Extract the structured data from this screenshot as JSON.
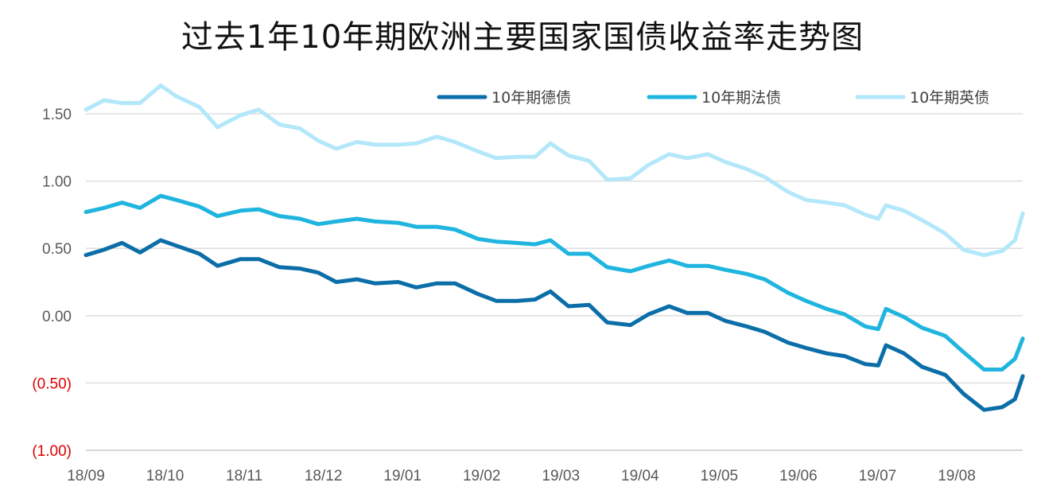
{
  "chart_data": {
    "type": "line",
    "title": "过去1年10年期欧洲主要国家国债收益率走势图",
    "x_range": [
      "2018-09-01",
      "2019-08-30"
    ],
    "x_tick_labels": [
      "18/09",
      "18/10",
      "18/11",
      "18/12",
      "19/01",
      "19/02",
      "19/03",
      "19/04",
      "19/05",
      "19/06",
      "19/07",
      "19/08"
    ],
    "y_ticks": [
      1.5,
      1.0,
      0.5,
      0.0,
      -0.5,
      -1.0
    ],
    "y_tick_labels": [
      "1.50",
      "1.00",
      "0.50",
      "0.00",
      "(0.50)",
      "(1.00)"
    ],
    "ylim": [
      -1.0,
      1.75
    ],
    "grid": "horizontal",
    "legend_position": "top-right",
    "negative_label_color": "#e00000",
    "series": [
      {
        "name": "10年期德债",
        "color": "#0b6ea8",
        "points": [
          [
            "2018-09-01",
            0.45
          ],
          [
            "2018-09-08",
            0.49
          ],
          [
            "2018-09-15",
            0.54
          ],
          [
            "2018-09-22",
            0.47
          ],
          [
            "2018-09-30",
            0.56
          ],
          [
            "2018-10-06",
            0.52
          ],
          [
            "2018-10-15",
            0.46
          ],
          [
            "2018-10-22",
            0.37
          ],
          [
            "2018-10-31",
            0.42
          ],
          [
            "2018-11-07",
            0.42
          ],
          [
            "2018-11-15",
            0.36
          ],
          [
            "2018-11-23",
            0.35
          ],
          [
            "2018-11-30",
            0.32
          ],
          [
            "2018-12-07",
            0.25
          ],
          [
            "2018-12-15",
            0.27
          ],
          [
            "2018-12-22",
            0.24
          ],
          [
            "2018-12-31",
            0.25
          ],
          [
            "2019-01-07",
            0.21
          ],
          [
            "2019-01-15",
            0.24
          ],
          [
            "2019-01-22",
            0.24
          ],
          [
            "2019-01-31",
            0.16
          ],
          [
            "2019-02-07",
            0.11
          ],
          [
            "2019-02-15",
            0.11
          ],
          [
            "2019-02-22",
            0.12
          ],
          [
            "2019-02-28",
            0.18
          ],
          [
            "2019-03-07",
            0.07
          ],
          [
            "2019-03-15",
            0.08
          ],
          [
            "2019-03-22",
            -0.05
          ],
          [
            "2019-03-31",
            -0.07
          ],
          [
            "2019-04-07",
            0.01
          ],
          [
            "2019-04-15",
            0.07
          ],
          [
            "2019-04-22",
            0.02
          ],
          [
            "2019-04-30",
            0.02
          ],
          [
            "2019-05-07",
            -0.04
          ],
          [
            "2019-05-15",
            -0.08
          ],
          [
            "2019-05-22",
            -0.12
          ],
          [
            "2019-05-31",
            -0.2
          ],
          [
            "2019-06-07",
            -0.24
          ],
          [
            "2019-06-15",
            -0.28
          ],
          [
            "2019-06-22",
            -0.3
          ],
          [
            "2019-06-30",
            -0.36
          ],
          [
            "2019-07-05",
            -0.37
          ],
          [
            "2019-07-08",
            -0.22
          ],
          [
            "2019-07-15",
            -0.28
          ],
          [
            "2019-07-22",
            -0.38
          ],
          [
            "2019-07-31",
            -0.44
          ],
          [
            "2019-08-07",
            -0.58
          ],
          [
            "2019-08-15",
            -0.7
          ],
          [
            "2019-08-22",
            -0.68
          ],
          [
            "2019-08-27",
            -0.62
          ],
          [
            "2019-08-30",
            -0.45
          ]
        ]
      },
      {
        "name": "10年期法债",
        "color": "#1fb5df",
        "points": [
          [
            "2018-09-01",
            0.77
          ],
          [
            "2018-09-08",
            0.8
          ],
          [
            "2018-09-15",
            0.84
          ],
          [
            "2018-09-22",
            0.8
          ],
          [
            "2018-09-30",
            0.89
          ],
          [
            "2018-10-06",
            0.86
          ],
          [
            "2018-10-15",
            0.81
          ],
          [
            "2018-10-22",
            0.74
          ],
          [
            "2018-10-31",
            0.78
          ],
          [
            "2018-11-07",
            0.79
          ],
          [
            "2018-11-15",
            0.74
          ],
          [
            "2018-11-23",
            0.72
          ],
          [
            "2018-11-30",
            0.68
          ],
          [
            "2018-12-07",
            0.7
          ],
          [
            "2018-12-15",
            0.72
          ],
          [
            "2018-12-22",
            0.7
          ],
          [
            "2018-12-31",
            0.69
          ],
          [
            "2019-01-07",
            0.66
          ],
          [
            "2019-01-15",
            0.66
          ],
          [
            "2019-01-22",
            0.64
          ],
          [
            "2019-01-31",
            0.57
          ],
          [
            "2019-02-07",
            0.55
          ],
          [
            "2019-02-15",
            0.54
          ],
          [
            "2019-02-22",
            0.53
          ],
          [
            "2019-02-28",
            0.56
          ],
          [
            "2019-03-07",
            0.46
          ],
          [
            "2019-03-15",
            0.46
          ],
          [
            "2019-03-22",
            0.36
          ],
          [
            "2019-03-31",
            0.33
          ],
          [
            "2019-04-07",
            0.37
          ],
          [
            "2019-04-15",
            0.41
          ],
          [
            "2019-04-22",
            0.37
          ],
          [
            "2019-04-30",
            0.37
          ],
          [
            "2019-05-07",
            0.34
          ],
          [
            "2019-05-15",
            0.31
          ],
          [
            "2019-05-22",
            0.27
          ],
          [
            "2019-05-31",
            0.17
          ],
          [
            "2019-06-07",
            0.11
          ],
          [
            "2019-06-15",
            0.05
          ],
          [
            "2019-06-22",
            0.01
          ],
          [
            "2019-06-30",
            -0.08
          ],
          [
            "2019-07-05",
            -0.1
          ],
          [
            "2019-07-08",
            0.05
          ],
          [
            "2019-07-15",
            -0.01
          ],
          [
            "2019-07-22",
            -0.09
          ],
          [
            "2019-07-31",
            -0.15
          ],
          [
            "2019-08-07",
            -0.27
          ],
          [
            "2019-08-15",
            -0.4
          ],
          [
            "2019-08-22",
            -0.4
          ],
          [
            "2019-08-27",
            -0.32
          ],
          [
            "2019-08-30",
            -0.17
          ]
        ]
      },
      {
        "name": "10年期英债",
        "color": "#b3e7fa",
        "points": [
          [
            "2018-09-01",
            1.53
          ],
          [
            "2018-09-08",
            1.6
          ],
          [
            "2018-09-15",
            1.58
          ],
          [
            "2018-09-22",
            1.58
          ],
          [
            "2018-09-30",
            1.71
          ],
          [
            "2018-10-06",
            1.63
          ],
          [
            "2018-10-15",
            1.55
          ],
          [
            "2018-10-22",
            1.4
          ],
          [
            "2018-10-31",
            1.49
          ],
          [
            "2018-11-07",
            1.53
          ],
          [
            "2018-11-15",
            1.42
          ],
          [
            "2018-11-23",
            1.39
          ],
          [
            "2018-11-30",
            1.3
          ],
          [
            "2018-12-07",
            1.24
          ],
          [
            "2018-12-15",
            1.29
          ],
          [
            "2018-12-22",
            1.27
          ],
          [
            "2018-12-31",
            1.27
          ],
          [
            "2019-01-07",
            1.28
          ],
          [
            "2019-01-15",
            1.33
          ],
          [
            "2019-01-22",
            1.29
          ],
          [
            "2019-01-31",
            1.22
          ],
          [
            "2019-02-07",
            1.17
          ],
          [
            "2019-02-15",
            1.18
          ],
          [
            "2019-02-22",
            1.18
          ],
          [
            "2019-02-28",
            1.28
          ],
          [
            "2019-03-07",
            1.19
          ],
          [
            "2019-03-15",
            1.15
          ],
          [
            "2019-03-22",
            1.01
          ],
          [
            "2019-03-31",
            1.02
          ],
          [
            "2019-04-07",
            1.12
          ],
          [
            "2019-04-15",
            1.2
          ],
          [
            "2019-04-22",
            1.17
          ],
          [
            "2019-04-30",
            1.2
          ],
          [
            "2019-05-07",
            1.14
          ],
          [
            "2019-05-15",
            1.09
          ],
          [
            "2019-05-22",
            1.03
          ],
          [
            "2019-05-31",
            0.92
          ],
          [
            "2019-06-07",
            0.86
          ],
          [
            "2019-06-15",
            0.84
          ],
          [
            "2019-06-22",
            0.82
          ],
          [
            "2019-06-30",
            0.75
          ],
          [
            "2019-07-05",
            0.72
          ],
          [
            "2019-07-08",
            0.82
          ],
          [
            "2019-07-15",
            0.78
          ],
          [
            "2019-07-22",
            0.71
          ],
          [
            "2019-07-31",
            0.61
          ],
          [
            "2019-08-07",
            0.49
          ],
          [
            "2019-08-15",
            0.45
          ],
          [
            "2019-08-22",
            0.48
          ],
          [
            "2019-08-27",
            0.56
          ],
          [
            "2019-08-30",
            0.76
          ]
        ]
      }
    ]
  }
}
